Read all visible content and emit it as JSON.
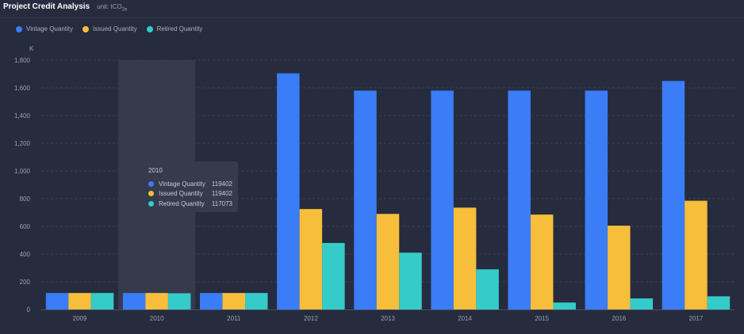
{
  "header": {
    "title": "Project Credit Analysis",
    "unit_prefix": "unit: tCO",
    "unit_sub": "2e"
  },
  "legend": [
    {
      "label": "Vintage Quantity",
      "color": "#3b7cf7"
    },
    {
      "label": "Issued Quantity",
      "color": "#f6be3a"
    },
    {
      "label": "Retired Quantity",
      "color": "#34cbc8"
    }
  ],
  "tooltip": {
    "title": "2010",
    "rows": [
      {
        "name": "Vintage Quantity",
        "value": "119402",
        "color": "#3b7cf7"
      },
      {
        "name": "Issued Quantity",
        "value": "119402",
        "color": "#f6be3a"
      },
      {
        "name": "Retired Quantity",
        "value": "117073",
        "color": "#34cbc8"
      }
    ]
  },
  "chart_data": {
    "type": "bar",
    "title": "Project Credit Analysis",
    "ylabel": "K",
    "categories": [
      "2009",
      "2010",
      "2011",
      "2012",
      "2013",
      "2014",
      "2015",
      "2016",
      "2017"
    ],
    "series": [
      {
        "name": "Vintage Quantity",
        "color": "#3b7cf7",
        "values": [
          119,
          119,
          119,
          1705,
          1580,
          1580,
          1580,
          1580,
          1650
        ]
      },
      {
        "name": "Issued Quantity",
        "color": "#f6be3a",
        "values": [
          119,
          119,
          119,
          725,
          690,
          735,
          685,
          605,
          785
        ]
      },
      {
        "name": "Retired Quantity",
        "color": "#34cbc8",
        "values": [
          119,
          117,
          119,
          480,
          410,
          290,
          50,
          80,
          95
        ]
      }
    ],
    "ylim": [
      0,
      1800
    ],
    "yticks": [
      "0",
      "200",
      "400",
      "600",
      "800",
      "1,000",
      "1,200",
      "1,400",
      "1,600",
      "1,800"
    ],
    "grid": true,
    "highlighted_category": "2010",
    "legend_position": "top-left"
  }
}
